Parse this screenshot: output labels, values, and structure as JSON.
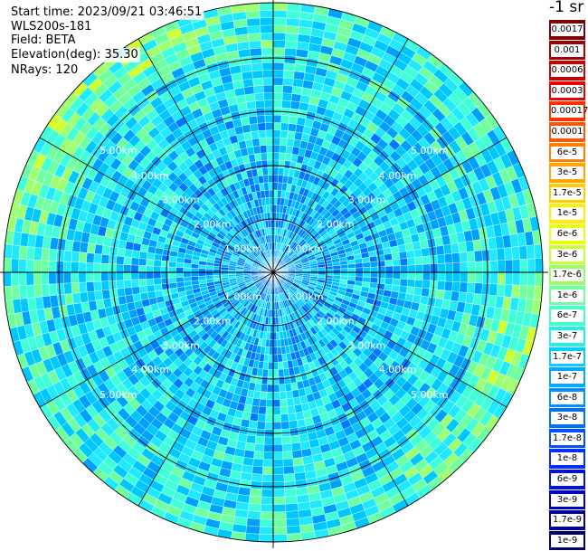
{
  "info": {
    "start_time": "Start time: 2023/09/21 03:46:51",
    "instrument": "WLS200s-181",
    "field": "Field: BETA",
    "elevation": "Elevation(deg): 35.30",
    "nrays": "NRays: 120"
  },
  "plot": {
    "ring_labels": [
      "1.00km",
      "2.00km",
      "3.00km",
      "4.00km",
      "5.00km"
    ]
  },
  "colorbar": {
    "title": "-1 sr",
    "items": [
      {
        "label": "0.0017",
        "color": "#7f0000"
      },
      {
        "label": "0.001",
        "color": "#a50000"
      },
      {
        "label": "0.0006",
        "color": "#cc0000"
      },
      {
        "label": "0.0003",
        "color": "#ee0000"
      },
      {
        "label": "0.00017",
        "color": "#ff3000"
      },
      {
        "label": "0.0001",
        "color": "#ff5500"
      },
      {
        "label": "6e-5",
        "color": "#ff8000"
      },
      {
        "label": "3e-5",
        "color": "#ffa500"
      },
      {
        "label": "1.7e-5",
        "color": "#ffcc00"
      },
      {
        "label": "1e-5",
        "color": "#ffee00"
      },
      {
        "label": "6e-6",
        "color": "#eaff10"
      },
      {
        "label": "3e-6",
        "color": "#c8ff30"
      },
      {
        "label": "1.7e-6",
        "color": "#98ff60"
      },
      {
        "label": "1e-6",
        "color": "#6fffa0"
      },
      {
        "label": "6e-7",
        "color": "#40ffc8"
      },
      {
        "label": "3e-7",
        "color": "#20f0f0"
      },
      {
        "label": "1.7e-7",
        "color": "#00d0ff"
      },
      {
        "label": "1e-7",
        "color": "#00a8ff"
      },
      {
        "label": "6e-8",
        "color": "#0090ff"
      },
      {
        "label": "3e-8",
        "color": "#0070ff"
      },
      {
        "label": "1.7e-8",
        "color": "#0050ff"
      },
      {
        "label": "1e-8",
        "color": "#0030ff"
      },
      {
        "label": "6e-9",
        "color": "#0010e0"
      },
      {
        "label": "3e-9",
        "color": "#0000c0"
      },
      {
        "label": "1.7e-9",
        "color": "#000098"
      },
      {
        "label": "1e-9",
        "color": "#000070"
      }
    ]
  }
}
